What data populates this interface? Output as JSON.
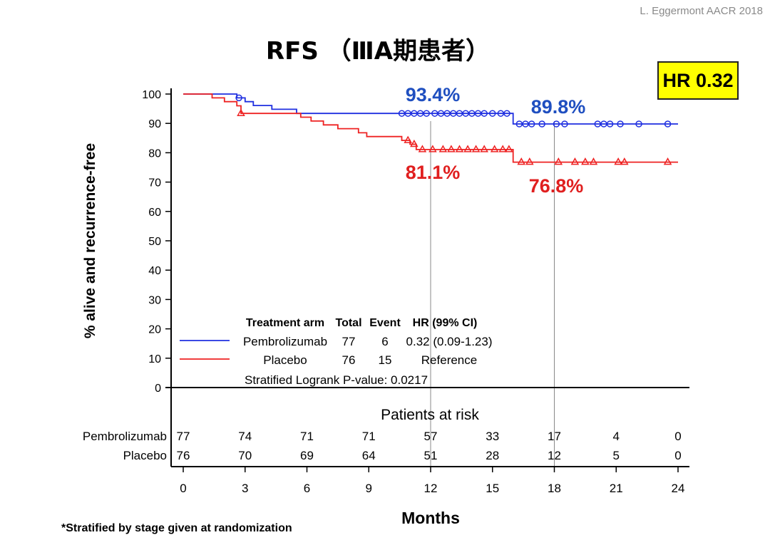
{
  "source_credit": "L. Eggermont AACR 2018",
  "title": "RFS （ⅢA期患者）",
  "hr_badge": "HR  0.32",
  "footnote": "*Stratified by stage given at randomization",
  "colors": {
    "pembrolizumab": "#1f2fe0",
    "placebo": "#ee2222",
    "annotation_blue": "#1f4fc0",
    "annotation_red": "#e01f1f",
    "badge": "#ffff00"
  },
  "chart_data": {
    "type": "line",
    "ylabel": "% alive and recurrence-free",
    "xlabel": "Months",
    "xlim": [
      0,
      24
    ],
    "ylim": [
      0,
      100
    ],
    "xticks": [
      0,
      3,
      6,
      9,
      12,
      15,
      18,
      21,
      24
    ],
    "yticks": [
      0,
      10,
      20,
      30,
      40,
      50,
      60,
      70,
      80,
      90,
      100
    ],
    "reference_lines_x": [
      12,
      18
    ],
    "annotations": [
      {
        "text": "93.4%",
        "series": "Pembrolizumab",
        "x": 12,
        "y": 93.4
      },
      {
        "text": "89.8%",
        "series": "Pembrolizumab",
        "x": 18,
        "y": 89.8
      },
      {
        "text": "81.1%",
        "series": "Placebo",
        "x": 12,
        "y": 81.1
      },
      {
        "text": "76.8%",
        "series": "Placebo",
        "x": 18,
        "y": 76.8
      }
    ],
    "series": [
      {
        "name": "Pembrolizumab",
        "marker": "circle",
        "steps": [
          [
            0,
            100
          ],
          [
            2.6,
            100
          ],
          [
            2.6,
            98.7
          ],
          [
            3.0,
            98.7
          ],
          [
            3.0,
            97.4
          ],
          [
            3.4,
            97.4
          ],
          [
            3.4,
            96.1
          ],
          [
            4.3,
            96.1
          ],
          [
            4.3,
            94.8
          ],
          [
            5.5,
            94.8
          ],
          [
            5.5,
            93.4
          ],
          [
            16.0,
            93.4
          ],
          [
            16.0,
            89.8
          ],
          [
            24.0,
            89.8
          ]
        ],
        "censored": [
          [
            2.7,
            98.7
          ],
          [
            10.6,
            93.4
          ],
          [
            10.9,
            93.4
          ],
          [
            11.2,
            93.4
          ],
          [
            11.5,
            93.4
          ],
          [
            11.8,
            93.4
          ],
          [
            12.2,
            93.4
          ],
          [
            12.5,
            93.4
          ],
          [
            12.8,
            93.4
          ],
          [
            13.1,
            93.4
          ],
          [
            13.4,
            93.4
          ],
          [
            13.7,
            93.4
          ],
          [
            14.0,
            93.4
          ],
          [
            14.3,
            93.4
          ],
          [
            14.6,
            93.4
          ],
          [
            15.0,
            93.4
          ],
          [
            15.4,
            93.4
          ],
          [
            15.7,
            93.4
          ],
          [
            16.3,
            89.8
          ],
          [
            16.6,
            89.8
          ],
          [
            16.9,
            89.8
          ],
          [
            17.4,
            89.8
          ],
          [
            18.1,
            89.8
          ],
          [
            18.5,
            89.8
          ],
          [
            20.1,
            89.8
          ],
          [
            20.4,
            89.8
          ],
          [
            20.7,
            89.8
          ],
          [
            21.2,
            89.8
          ],
          [
            22.1,
            89.8
          ],
          [
            23.5,
            89.8
          ]
        ]
      },
      {
        "name": "Placebo",
        "marker": "triangle",
        "steps": [
          [
            0,
            100
          ],
          [
            1.4,
            100
          ],
          [
            1.4,
            98.7
          ],
          [
            2.0,
            98.7
          ],
          [
            2.0,
            97.4
          ],
          [
            2.6,
            97.4
          ],
          [
            2.6,
            96.0
          ],
          [
            2.8,
            96.0
          ],
          [
            2.8,
            93.4
          ],
          [
            5.7,
            93.4
          ],
          [
            5.7,
            92.1
          ],
          [
            6.2,
            92.1
          ],
          [
            6.2,
            90.8
          ],
          [
            6.8,
            90.8
          ],
          [
            6.8,
            89.5
          ],
          [
            7.5,
            89.5
          ],
          [
            7.5,
            88.2
          ],
          [
            8.5,
            88.2
          ],
          [
            8.5,
            86.8
          ],
          [
            8.9,
            86.8
          ],
          [
            8.9,
            85.5
          ],
          [
            10.6,
            85.5
          ],
          [
            10.6,
            84.2
          ],
          [
            11.0,
            84.2
          ],
          [
            11.0,
            82.9
          ],
          [
            11.3,
            82.9
          ],
          [
            11.3,
            81.1
          ],
          [
            16.0,
            81.1
          ],
          [
            16.0,
            76.8
          ],
          [
            24.0,
            76.8
          ]
        ],
        "censored": [
          [
            2.8,
            93.4
          ],
          [
            10.9,
            84.2
          ],
          [
            11.2,
            82.9
          ],
          [
            11.6,
            81.1
          ],
          [
            12.1,
            81.1
          ],
          [
            12.6,
            81.1
          ],
          [
            13.0,
            81.1
          ],
          [
            13.4,
            81.1
          ],
          [
            13.8,
            81.1
          ],
          [
            14.2,
            81.1
          ],
          [
            14.6,
            81.1
          ],
          [
            15.1,
            81.1
          ],
          [
            15.5,
            81.1
          ],
          [
            15.8,
            81.1
          ],
          [
            16.4,
            76.8
          ],
          [
            16.8,
            76.8
          ],
          [
            18.2,
            76.8
          ],
          [
            19.0,
            76.8
          ],
          [
            19.5,
            76.8
          ],
          [
            19.9,
            76.8
          ],
          [
            21.1,
            76.8
          ],
          [
            21.4,
            76.8
          ],
          [
            23.5,
            76.8
          ]
        ]
      }
    ],
    "legend": {
      "headers": [
        "Treatment arm",
        "Total",
        "Event",
        "HR (99% CI)"
      ],
      "rows": [
        {
          "arm": "Pembrolizumab",
          "total": "77",
          "event": "6",
          "hr": "0.32 (0.09-1.23)"
        },
        {
          "arm": "Placebo",
          "total": "76",
          "event": "15",
          "hr": "Reference"
        }
      ],
      "pvalue": "Stratified Logrank P-value: 0.0217"
    },
    "at_risk": {
      "title": "Patients at risk",
      "rows": [
        {
          "label": "Pembrolizumab",
          "values": [
            "77",
            "74",
            "71",
            "71",
            "57",
            "33",
            "17",
            "4",
            "0"
          ]
        },
        {
          "label": "Placebo",
          "values": [
            "76",
            "70",
            "69",
            "64",
            "51",
            "28",
            "12",
            "5",
            "0"
          ]
        }
      ]
    }
  }
}
